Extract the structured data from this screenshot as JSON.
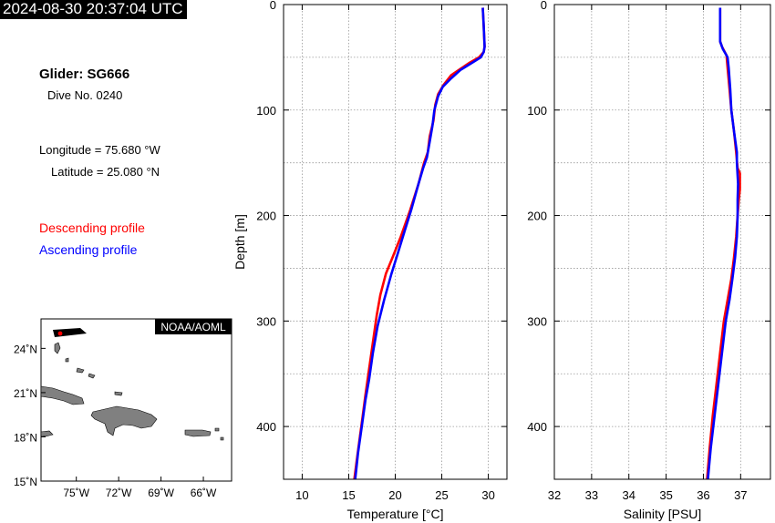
{
  "header": {
    "timestamp": "2024-08-30 20:37:04 UTC",
    "glider": "Glider: SG666",
    "dive": "Dive No. 0240",
    "longitude": "Longitude = 75.680 °W",
    "latitude": "Latitude = 25.080 °N",
    "descending_label": "Descending profile",
    "ascending_label": "Ascending profile",
    "descending_color": "#ff0000",
    "ascending_color": "#0000ff"
  },
  "map": {
    "credit": "NOAA/AOML",
    "lat_labels": [
      "24˚N",
      "21˚N",
      "18˚N",
      "15˚N"
    ],
    "lon_labels": [
      "75˚W",
      "72˚W",
      "69˚W",
      "66˚W"
    ],
    "lat_values": [
      24,
      21,
      18,
      15
    ],
    "lon_values": [
      -75,
      -72,
      -69,
      -66
    ],
    "extent": {
      "lon": [
        -77.5,
        -64
      ],
      "lat": [
        15,
        26
      ]
    },
    "glider_position": {
      "lon": -75.68,
      "lat": 25.08
    },
    "land_color": "#808080"
  },
  "chart_data": [
    {
      "type": "line",
      "xlabel": "Temperature [°C]",
      "ylabel": "Depth [m]",
      "xlim": [
        8,
        32
      ],
      "ylim": [
        450,
        0
      ],
      "xticks": [
        10,
        15,
        20,
        25,
        30
      ],
      "yticks": [
        0,
        100,
        200,
        300,
        400
      ],
      "grid": true,
      "series": [
        {
          "name": "Descending profile",
          "color": "#ff0000",
          "points": [
            [
              29.4,
              3
            ],
            [
              29.5,
              20
            ],
            [
              29.6,
              40
            ],
            [
              29.5,
              45
            ],
            [
              29.0,
              50
            ],
            [
              28.0,
              55
            ],
            [
              27.0,
              61
            ],
            [
              26.0,
              67
            ],
            [
              25.2,
              76
            ],
            [
              24.6,
              85
            ],
            [
              24.3,
              95
            ],
            [
              24.1,
              110
            ],
            [
              23.7,
              125
            ],
            [
              23.5,
              140
            ],
            [
              23.1,
              150
            ],
            [
              22.5,
              170
            ],
            [
              21.6,
              195
            ],
            [
              20.6,
              220
            ],
            [
              19.7,
              240
            ],
            [
              19.0,
              255
            ],
            [
              18.4,
              275
            ],
            [
              18.0,
              295
            ],
            [
              17.6,
              320
            ],
            [
              17.2,
              345
            ],
            [
              16.8,
              370
            ],
            [
              16.5,
              390
            ],
            [
              16.2,
              410
            ],
            [
              15.9,
              430
            ],
            [
              15.6,
              450
            ]
          ]
        },
        {
          "name": "Ascending profile",
          "color": "#0000ff",
          "points": [
            [
              29.4,
              3
            ],
            [
              29.5,
              20
            ],
            [
              29.6,
              40
            ],
            [
              29.5,
              45
            ],
            [
              29.2,
              50
            ],
            [
              28.3,
              55
            ],
            [
              27.0,
              62
            ],
            [
              26.0,
              70
            ],
            [
              25.1,
              78
            ],
            [
              24.6,
              87
            ],
            [
              24.2,
              100
            ],
            [
              24.0,
              115
            ],
            [
              23.7,
              130
            ],
            [
              23.4,
              145
            ],
            [
              23.0,
              155
            ],
            [
              22.5,
              170
            ],
            [
              21.7,
              195
            ],
            [
              21.0,
              215
            ],
            [
              20.3,
              235
            ],
            [
              19.6,
              255
            ],
            [
              18.8,
              280
            ],
            [
              18.1,
              305
            ],
            [
              17.6,
              330
            ],
            [
              17.2,
              355
            ],
            [
              16.8,
              375
            ],
            [
              16.4,
              400
            ],
            [
              16.0,
              425
            ],
            [
              15.7,
              450
            ]
          ]
        }
      ]
    },
    {
      "type": "line",
      "xlabel": "Salinity [PSU]",
      "ylabel": "",
      "xlim": [
        32,
        37.8
      ],
      "ylim": [
        450,
        0
      ],
      "xticks": [
        32,
        33,
        34,
        35,
        36,
        37
      ],
      "yticks": [
        0,
        100,
        200,
        300,
        400
      ],
      "grid": true,
      "series": [
        {
          "name": "Descending profile",
          "color": "#ff0000",
          "points": [
            [
              36.45,
              3
            ],
            [
              36.45,
              20
            ],
            [
              36.45,
              35
            ],
            [
              36.5,
              40
            ],
            [
              36.62,
              48
            ],
            [
              36.65,
              60
            ],
            [
              36.7,
              80
            ],
            [
              36.75,
              100
            ],
            [
              36.82,
              120
            ],
            [
              36.88,
              140
            ],
            [
              36.92,
              155
            ],
            [
              36.98,
              160
            ],
            [
              36.98,
              175
            ],
            [
              36.95,
              185
            ],
            [
              36.92,
              200
            ],
            [
              36.88,
              220
            ],
            [
              36.82,
              240
            ],
            [
              36.75,
              260
            ],
            [
              36.65,
              280
            ],
            [
              36.55,
              300
            ],
            [
              36.45,
              330
            ],
            [
              36.35,
              360
            ],
            [
              36.25,
              390
            ],
            [
              36.17,
              420
            ],
            [
              36.1,
              450
            ]
          ]
        },
        {
          "name": "Ascending profile",
          "color": "#0000ff",
          "points": [
            [
              36.45,
              3
            ],
            [
              36.45,
              20
            ],
            [
              36.45,
              35
            ],
            [
              36.52,
              42
            ],
            [
              36.65,
              50
            ],
            [
              36.68,
              60
            ],
            [
              36.72,
              80
            ],
            [
              36.75,
              100
            ],
            [
              36.82,
              120
            ],
            [
              36.9,
              140
            ],
            [
              36.9,
              150
            ],
            [
              36.93,
              170
            ],
            [
              36.92,
              185
            ],
            [
              36.92,
              200
            ],
            [
              36.9,
              220
            ],
            [
              36.85,
              240
            ],
            [
              36.78,
              260
            ],
            [
              36.7,
              280
            ],
            [
              36.6,
              300
            ],
            [
              36.5,
              330
            ],
            [
              36.4,
              360
            ],
            [
              36.3,
              390
            ],
            [
              36.2,
              420
            ],
            [
              36.12,
              450
            ]
          ]
        }
      ]
    }
  ]
}
